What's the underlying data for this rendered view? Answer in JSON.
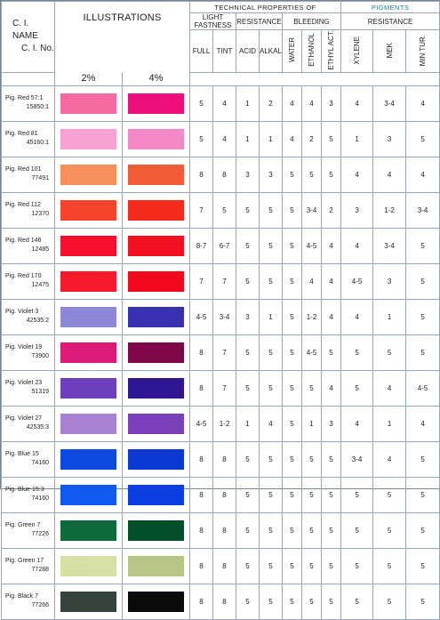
{
  "header": {
    "ci_name": "C. I. NAME",
    "ci_no": "C. I. No.",
    "illustrations": "ILLUSTRATIONS",
    "pct_2": "2%",
    "pct_4": "4%",
    "technical": "TECHNICAL PROPERTIES OF",
    "pigments": "PIGMENTS",
    "light_fastness": "LIGHT FASTNESS",
    "resistance_1": "RESISTANCE",
    "bleeding": "BLEEDING",
    "resistance_2": "RESISTANCE",
    "columns": [
      "FULL",
      "TINT",
      "ACID",
      "ALKALI",
      "WATER",
      "ETHANOL",
      "ETHYL ACT.",
      "XYLENE",
      "MEK",
      "MIN TUR."
    ]
  },
  "rows": [
    {
      "name": "Pig. Red 57:1",
      "number": "15850:1",
      "swatch2": "#f56aa0",
      "swatch4": "#ee0f7a",
      "values": [
        "5",
        "4",
        "1",
        "2",
        "4",
        "4",
        "3",
        "4",
        "3-4",
        "4"
      ]
    },
    {
      "name": "Pig. Red 81",
      "number": "45160:1",
      "swatch2": "#f7a2d3",
      "swatch4": "#f389c6",
      "values": [
        "5",
        "4",
        "1",
        "1",
        "4",
        "2",
        "5",
        "1",
        "3",
        "5"
      ]
    },
    {
      "name": "Pig. Red 101",
      "number": "77491",
      "swatch2": "#f68f5b",
      "swatch4": "#f15c37",
      "values": [
        "8",
        "8",
        "3",
        "3",
        "5",
        "5",
        "5",
        "4",
        "4",
        "4"
      ]
    },
    {
      "name": "Pig. Red 112",
      "number": "12370",
      "swatch2": "#f6432c",
      "swatch4": "#f32a1c",
      "values": [
        "7",
        "5",
        "5",
        "5",
        "5",
        "3-4",
        "2",
        "3",
        "1-2",
        "3-4"
      ]
    },
    {
      "name": "Pig. Red 146",
      "number": "12485",
      "swatch2": "#f6102e",
      "swatch4": "#f20f1f",
      "values": [
        "8-7",
        "6-7",
        "5",
        "5",
        "5",
        "4-5",
        "4",
        "4",
        "3-4",
        "5"
      ]
    },
    {
      "name": "Pig. Red 170",
      "number": "12475",
      "swatch2": "#f61a2c",
      "swatch4": "#f2081c",
      "values": [
        "7",
        "7",
        "5",
        "5",
        "5",
        "4",
        "4",
        "4-5",
        "3",
        "5"
      ]
    },
    {
      "name": "Pig. Violet 3",
      "number": "42535:2",
      "swatch2": "#8d87d8",
      "swatch4": "#3730b0",
      "values": [
        "4-5",
        "3-4",
        "3",
        "1",
        "5",
        "1-2",
        "4",
        "4",
        "1",
        "5"
      ]
    },
    {
      "name": "Pig. Violet 19",
      "number": "73900",
      "swatch2": "#de1a78",
      "swatch4": "#7f0749",
      "values": [
        "8",
        "7",
        "5",
        "5",
        "5",
        "4-5",
        "5",
        "5",
        "5",
        "5"
      ]
    },
    {
      "name": "Pig. Violet 23",
      "number": "51319",
      "swatch2": "#6d3fbf",
      "swatch4": "#2f1793",
      "values": [
        "8",
        "7",
        "5",
        "5",
        "5",
        "5",
        "4",
        "5",
        "4",
        "4-5"
      ]
    },
    {
      "name": "Pig. Violet 27",
      "number": "42535:3",
      "swatch2": "#a881d3",
      "swatch4": "#7a3fbb",
      "values": [
        "4-5",
        "1-2",
        "1",
        "4",
        "5",
        "1",
        "3",
        "4",
        "1",
        "4"
      ]
    },
    {
      "name": "Pig. Blue 15",
      "number": "74160",
      "swatch2": "#0c49e0",
      "swatch4": "#0a39d2",
      "values": [
        "8",
        "8",
        "5",
        "5",
        "5",
        "5",
        "5",
        "3-4",
        "4",
        "5"
      ]
    },
    {
      "name": "Pig. Blue 15:3",
      "number": "74160",
      "swatch2": "#0f59f0",
      "swatch4": "#0a3ee2",
      "values": [
        "8",
        "8",
        "5",
        "5",
        "5",
        "5",
        "5",
        "5",
        "5",
        "5"
      ]
    },
    {
      "name": "Pig. Green 7",
      "number": "77226",
      "swatch2": "#0d6b3b",
      "swatch4": "#034f2b",
      "values": [
        "8",
        "8",
        "5",
        "5",
        "5",
        "5",
        "5",
        "5",
        "5",
        "5"
      ]
    },
    {
      "name": "Pig. Green 17",
      "number": "77288",
      "swatch2": "#d6e0a5",
      "swatch4": "#b9c585",
      "values": [
        "8",
        "8",
        "5",
        "5",
        "5",
        "5",
        "5",
        "5",
        "5",
        "5"
      ]
    },
    {
      "name": "Pig. Black 7",
      "number": "77266",
      "swatch2": "#34433c",
      "swatch4": "#0a0a0a",
      "values": [
        "8",
        "8",
        "5",
        "5",
        "5",
        "5",
        "5",
        "5",
        "5",
        "5"
      ]
    }
  ]
}
